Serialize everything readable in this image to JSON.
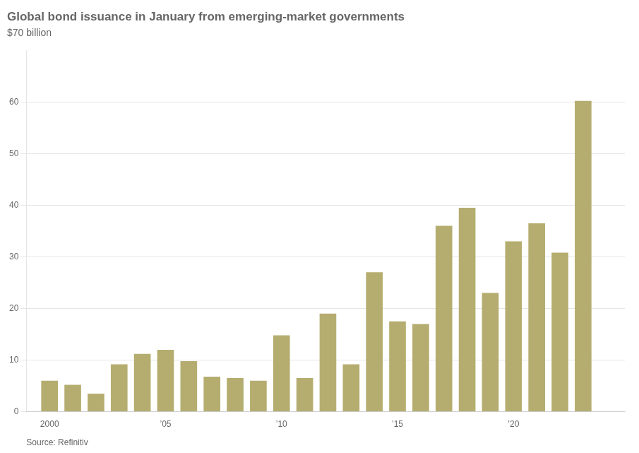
{
  "chart_data": {
    "type": "bar",
    "title": "Global bond issuance in January from emerging-market governments",
    "subtitle": "$70 billion",
    "source": "Source: Refinitiv",
    "x": [
      2000,
      2001,
      2002,
      2003,
      2004,
      2005,
      2006,
      2007,
      2008,
      2009,
      2010,
      2011,
      2012,
      2013,
      2014,
      2015,
      2016,
      2017,
      2018,
      2019,
      2020,
      2021,
      2022,
      2023,
      2024
    ],
    "values": [
      6.0,
      5.2,
      3.5,
      9.2,
      11.2,
      12.0,
      9.8,
      6.8,
      6.5,
      6.0,
      14.8,
      6.5,
      19.0,
      9.2,
      27.0,
      17.5,
      17.0,
      36.0,
      39.5,
      23.0,
      33.0,
      36.5,
      30.8,
      60.2,
      0.0
    ],
    "color": "#b5ad6f",
    "xlim": [
      1999.0,
      2024.8
    ],
    "xticks": [
      2000,
      {
        "value": 2005,
        "label": "’05"
      },
      {
        "value": 2010,
        "label": "’10"
      },
      {
        "value": 2015,
        "label": "’15"
      },
      {
        "value": 2020,
        "label": "’20"
      }
    ],
    "ylim": [
      0,
      70
    ],
    "yticks": [
      0,
      10,
      20,
      30,
      40,
      50,
      60
    ],
    "grid": true
  }
}
